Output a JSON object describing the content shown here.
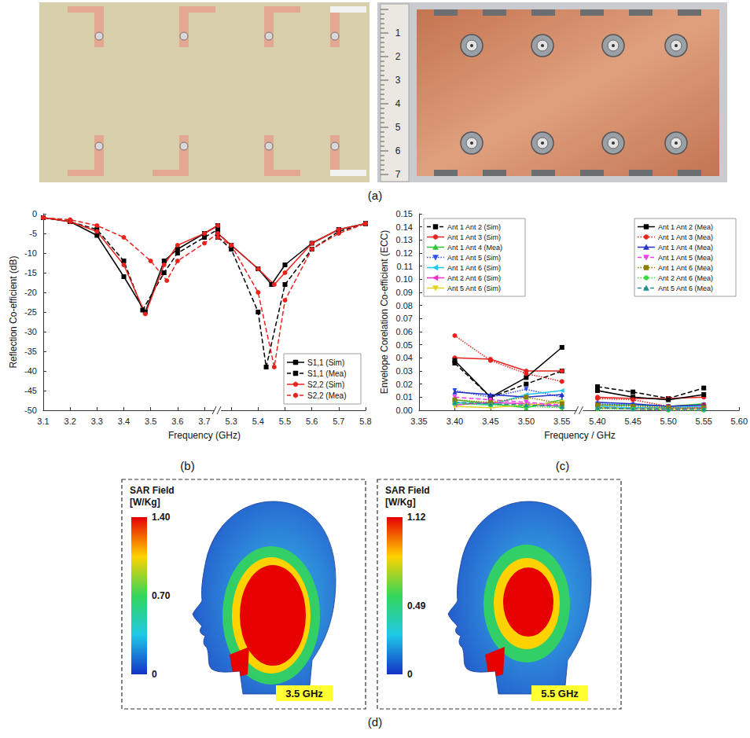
{
  "photos": {
    "label": "(a)",
    "ruler_labels": [
      1,
      2,
      3,
      4,
      5,
      6,
      7
    ]
  },
  "chart_data": [
    {
      "type": "line",
      "label": "(b)",
      "xlabel": "Frequency (GHz)",
      "ylabel": "Reflection Co-efficient (dB)",
      "segments": [
        {
          "xlim": [
            3.1,
            3.75
          ],
          "xticks": [
            3.1,
            3.2,
            3.3,
            3.4,
            3.5,
            3.6,
            3.7
          ]
        },
        {
          "xlim": [
            5.25,
            5.8
          ],
          "xticks": [
            5.3,
            5.4,
            5.5,
            5.6,
            5.7,
            5.8
          ]
        }
      ],
      "ylim": [
        -50,
        0
      ],
      "yticks": [
        -50,
        -45,
        -40,
        -35,
        -30,
        -25,
        -20,
        -15,
        -10,
        -5,
        0
      ],
      "grid": false,
      "legend": "lower right",
      "series": [
        {
          "name": "S1,1 (Sim)",
          "color": "#000000",
          "marker": "square",
          "line_style": "solid",
          "x": [
            3.1,
            3.2,
            3.3,
            3.4,
            3.48,
            3.55,
            3.6,
            3.7,
            3.75,
            5.25,
            5.3,
            5.4,
            5.45,
            5.5,
            5.6,
            5.7,
            5.8
          ],
          "values": [
            -1,
            -2,
            -5.5,
            -16,
            -25,
            -12,
            -9,
            -5,
            -3,
            -5,
            -8,
            -14,
            -18,
            -13,
            -7.5,
            -4,
            -2.5
          ]
        },
        {
          "name": "S1,1 (Mea)",
          "color": "#000000",
          "marker": "square",
          "line_style": "dashed",
          "x": [
            3.1,
            3.2,
            3.3,
            3.4,
            3.47,
            3.55,
            3.6,
            3.7,
            3.75,
            5.25,
            5.3,
            5.4,
            5.43,
            5.5,
            5.6,
            5.7,
            5.8
          ],
          "values": [
            -1,
            -2,
            -4,
            -12,
            -24.5,
            -15,
            -10,
            -6,
            -4,
            -6,
            -9,
            -25,
            -39,
            -18,
            -9,
            -4.5,
            -2.5
          ]
        },
        {
          "name": "S2,2 (Sim)",
          "color": "#e8231e",
          "marker": "circle",
          "line_style": "solid",
          "x": [
            3.1,
            3.2,
            3.3,
            3.4,
            3.48,
            3.55,
            3.6,
            3.7,
            3.75,
            5.25,
            5.3,
            5.4,
            5.46,
            5.5,
            5.6,
            5.7,
            5.8
          ],
          "values": [
            -1,
            -2,
            -4.5,
            -13,
            -25.5,
            -13,
            -8,
            -5,
            -3,
            -5,
            -8,
            -14,
            -18,
            -15,
            -7.5,
            -4,
            -2.5
          ]
        },
        {
          "name": "S2,2 (Mea)",
          "color": "#e8231e",
          "marker": "circle",
          "line_style": "dashed",
          "x": [
            3.1,
            3.2,
            3.3,
            3.4,
            3.5,
            3.56,
            3.6,
            3.7,
            3.75,
            5.25,
            5.3,
            5.4,
            5.46,
            5.5,
            5.6,
            5.7,
            5.8
          ],
          "values": [
            -1,
            -1.5,
            -3,
            -6,
            -12,
            -17,
            -12,
            -7.5,
            -5,
            -6,
            -8,
            -20,
            -39,
            -22,
            -9,
            -5,
            -2.5
          ]
        }
      ]
    },
    {
      "type": "line",
      "label": "(c)",
      "xlabel": "Frequency / GHz",
      "ylabel": "Envelope Corelation Co-efficient (ECC)",
      "segments": [
        {
          "xlim": [
            3.35,
            3.575
          ],
          "xticks": [
            3.35,
            {
              "value": 3.4,
              "label": "3.40"
            },
            3.45,
            {
              "value": 3.5,
              "label": "3.50"
            },
            3.55
          ]
        },
        {
          "xlim": [
            5.375,
            5.6
          ],
          "xticks": [
            {
              "value": 5.4,
              "label": "5.40"
            },
            5.45,
            {
              "value": 5.5,
              "label": "5.50"
            },
            5.55,
            {
              "value": 5.6,
              "label": "5.60"
            }
          ]
        }
      ],
      "ylim": [
        0,
        0.15
      ],
      "yticks": [
        {
          "value": 0,
          "label": "0.00"
        },
        0.01,
        0.02,
        0.03,
        0.04,
        0.05,
        0.06,
        0.07,
        0.08,
        0.09,
        {
          "value": 0.1,
          "label": "0.10"
        },
        0.11,
        0.12,
        0.13,
        0.14,
        0.15
      ],
      "grid": false,
      "legend": "top",
      "x": [
        3.4,
        3.45,
        3.5,
        3.55,
        5.4,
        5.45,
        5.5,
        5.55
      ],
      "series": [
        {
          "name": "Ant 1 Ant 2 (Sim)",
          "color": "#000000",
          "marker": "square",
          "line_style": "dashed",
          "values": [
            0.036,
            0.01,
            0.02,
            0.03,
            0.018,
            0.014,
            0.009,
            0.017
          ]
        },
        {
          "name": "Ant 1 Ant 3 (Sim)",
          "color": "#e8231e",
          "marker": "circle",
          "line_style": "solid",
          "values": [
            0.04,
            0.039,
            0.03,
            0.03,
            0.01,
            0.009,
            0.009,
            0.01
          ]
        },
        {
          "name": "Ant 1 Ant 4 (Mea)",
          "color": "#2fc42f",
          "marker": "triangle",
          "line_style": "solid",
          "values": [
            0.008,
            0.005,
            0.002,
            0.008,
            0.004,
            0.004,
            0.003,
            0.005
          ]
        },
        {
          "name": "Ant 1 Ant 5 (Sim)",
          "color": "#2f4cf0",
          "marker": "triangle-down",
          "line_style": "dotted",
          "values": [
            0.015,
            0.01,
            0.016,
            0.01,
            0.005,
            0.004,
            0.003,
            0.004
          ]
        },
        {
          "name": "Ant 1 Ant 6 (Sim)",
          "color": "#1ec8f0",
          "marker": "triangle-left",
          "line_style": "solid",
          "values": [
            0.006,
            0.004,
            0.012,
            0.015,
            0.003,
            0.002,
            0.002,
            0.003
          ]
        },
        {
          "name": "Ant 2 Ant 6 (Sim)",
          "color": "#f02fc8",
          "marker": "triangle-left",
          "line_style": "solid",
          "values": [
            0.004,
            0.006,
            0.005,
            0.003,
            0.002,
            0.001,
            0.001,
            0.002
          ]
        },
        {
          "name": "Ant 5 Ant 6 (Sim)",
          "color": "#e6d21e",
          "marker": "triangle-down",
          "line_style": "solid",
          "values": [
            0.003,
            0.002,
            0.004,
            0.006,
            0.002,
            0.001,
            0.001,
            0.001
          ]
        },
        {
          "name": "Ant 1 Ant 2 (Mea)",
          "color": "#000000",
          "marker": "square",
          "line_style": "solid",
          "values": [
            0.038,
            0.01,
            0.025,
            0.048,
            0.015,
            0.01,
            0.008,
            0.012
          ]
        },
        {
          "name": "Ant 1 Ant 3 (Mea)",
          "color": "#e8231e",
          "marker": "circle",
          "line_style": "dotted",
          "values": [
            0.057,
            0.038,
            0.028,
            0.022,
            0.009,
            0.008,
            0.003,
            0.004
          ]
        },
        {
          "name": "Ant 1 Ant 4 (Mea)",
          "color": "#2233c8",
          "marker": "triangle",
          "line_style": "solid",
          "values": [
            0.014,
            0.012,
            0.01,
            0.012,
            0.006,
            0.005,
            0.003,
            0.004
          ]
        },
        {
          "name": "Ant 1 Ant 5 (Mea)",
          "color": "#f03cf0",
          "marker": "triangle-down",
          "line_style": "dashed",
          "values": [
            0.01,
            0.008,
            0.006,
            0.004,
            0.002,
            0.001,
            0.0,
            0.001
          ]
        },
        {
          "name": "Ant 1 Ant 6 (Mea)",
          "color": "#8b7d00",
          "marker": "square",
          "line_style": "dotted",
          "values": [
            0.008,
            0.006,
            0.01,
            0.005,
            0.004,
            0.003,
            0.002,
            0.002
          ]
        },
        {
          "name": "Ant 2 Ant 6 (Mea)",
          "color": "#3cdc3c",
          "marker": "circle",
          "line_style": "dotted",
          "values": [
            0.005,
            0.004,
            0.003,
            0.002,
            0.001,
            0.001,
            0.0,
            0.0
          ]
        },
        {
          "name": "Ant 5 Ant 6 (Mea)",
          "color": "#1f8f8f",
          "marker": "triangle",
          "line_style": "dashed",
          "values": [
            0.006,
            0.005,
            0.004,
            0.003,
            0.002,
            0.001,
            0.001,
            0.001
          ]
        }
      ]
    }
  ],
  "sar": {
    "label": "(d)",
    "maps": [
      {
        "title": "SAR Field",
        "unit": "[W/Kg]",
        "frequency": "3.5 GHz",
        "range": [
          0,
          1.4
        ],
        "ticks": [
          {
            "value": 0,
            "label": "0"
          },
          {
            "value": 0.7,
            "label": "0.70"
          },
          {
            "value": 1.4,
            "label": "1.40"
          }
        ]
      },
      {
        "title": "SAR Field",
        "unit": "[W/Kg]",
        "frequency": "5.5 GHz",
        "range": [
          0,
          1.12
        ],
        "ticks": [
          {
            "value": 0,
            "label": "0"
          },
          {
            "value": 0.49,
            "label": "0.49"
          },
          {
            "value": 1.12,
            "label": "1.12"
          }
        ]
      }
    ]
  }
}
